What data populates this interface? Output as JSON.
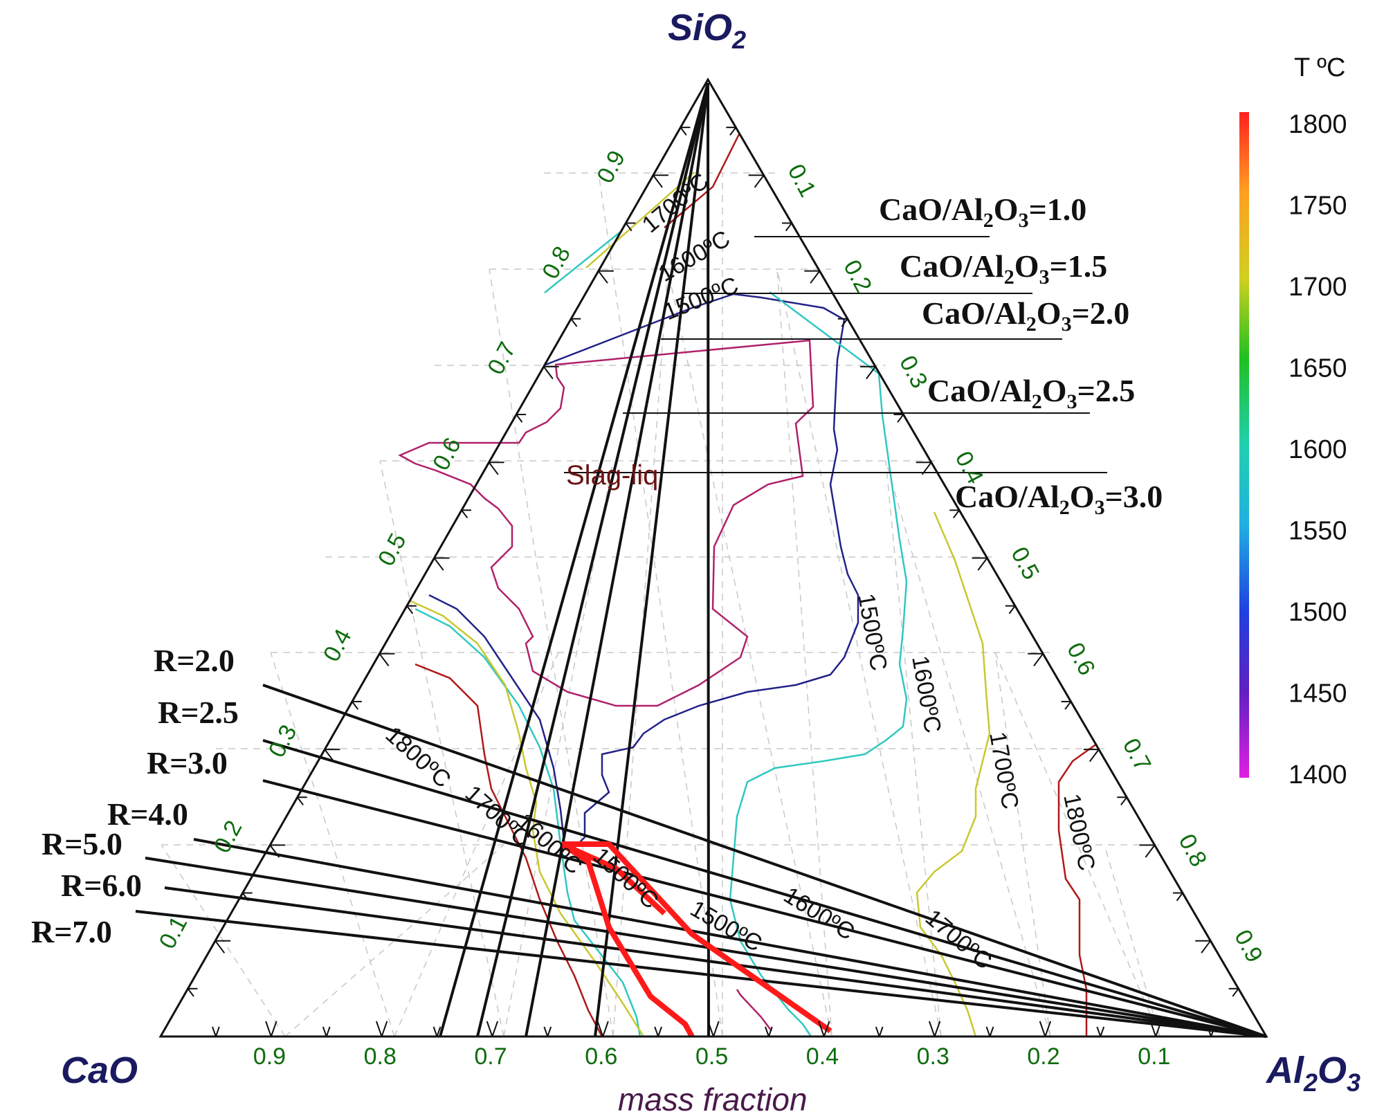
{
  "diagram": {
    "vertices": {
      "top": {
        "main": "SiO",
        "sub": "2"
      },
      "left": {
        "main": "CaO",
        "sub": ""
      },
      "right": {
        "main": "Al",
        "sub1": "2",
        "mid": "O",
        "sub2": "3"
      }
    },
    "x_axis_label": "mass fraction",
    "phase_label": "Slag-liq",
    "tick_labels": [
      "0.1",
      "0.2",
      "0.3",
      "0.4",
      "0.5",
      "0.6",
      "0.7",
      "0.8",
      "0.9"
    ],
    "colorbar": {
      "title": "T ºC",
      "values": [
        "1800",
        "1750",
        "1700",
        "1650",
        "1600",
        "1550",
        "1500",
        "1450",
        "1400"
      ],
      "colors": [
        "#ff2020",
        "#ffa020",
        "#d0d020",
        "#20c020",
        "#20d0b0",
        "#20b0e0",
        "#2040e0",
        "#6020c0",
        "#e020e0"
      ]
    },
    "ratio_lines": [
      {
        "prefix": "CaO/Al",
        "sub": "2",
        "mid": "O",
        "sub2": "3",
        "value": "=1.0"
      },
      {
        "prefix": "CaO/Al",
        "sub": "2",
        "mid": "O",
        "sub2": "3",
        "value": "=1.5"
      },
      {
        "prefix": "CaO/Al",
        "sub": "2",
        "mid": "O",
        "sub2": "3",
        "value": "=2.0"
      },
      {
        "prefix": "CaO/Al",
        "sub": "2",
        "mid": "O",
        "sub2": "3",
        "value": "=2.5"
      },
      {
        "prefix": "CaO/Al",
        "sub": "2",
        "mid": "O",
        "sub2": "3",
        "value": "=3.0"
      }
    ],
    "basicity_lines": [
      "R=2.0",
      "R=2.5",
      "R=3.0",
      "R=4.0",
      "R=5.0",
      "R=6.0",
      "R=7.0"
    ],
    "isotherm_labels": {
      "t1800": "1800ºC",
      "t1700": "1700ºC",
      "t1600": "1600ºC",
      "t1500": "1500ºC"
    },
    "isotherm_colors": {
      "t1800": "#b01818",
      "t1700": "#c8c830",
      "t1600": "#30c8c0",
      "t1500": "#222288",
      "t1400": "#b0206a",
      "highlight": "#ff1a1a"
    }
  }
}
